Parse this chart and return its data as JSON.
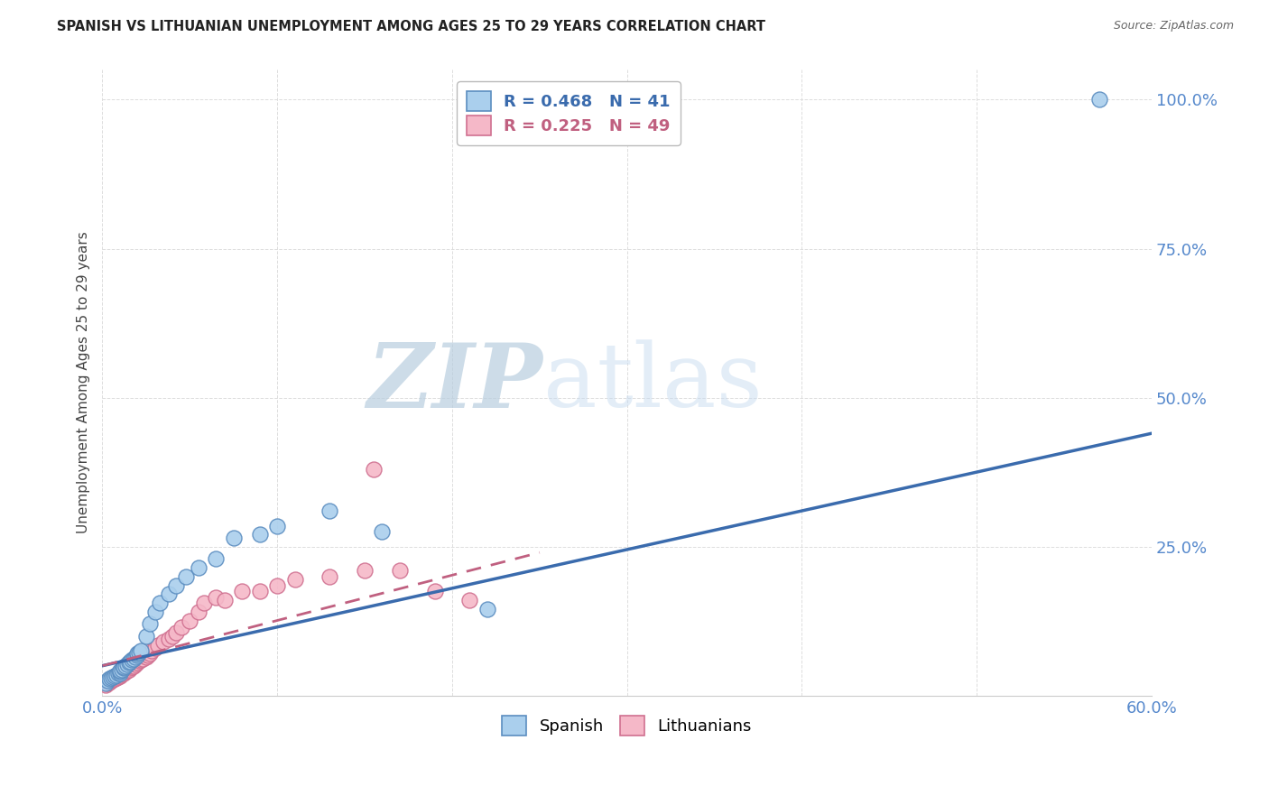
{
  "title": "SPANISH VS LITHUANIAN UNEMPLOYMENT AMONG AGES 25 TO 29 YEARS CORRELATION CHART",
  "source": "Source: ZipAtlas.com",
  "ylabel": "Unemployment Among Ages 25 to 29 years",
  "xlim": [
    0.0,
    0.6
  ],
  "ylim": [
    0.0,
    1.05
  ],
  "xticks": [
    0.0,
    0.1,
    0.2,
    0.3,
    0.4,
    0.5,
    0.6
  ],
  "xtick_labels": [
    "0.0%",
    "",
    "",
    "",
    "",
    "",
    "60.0%"
  ],
  "yticks": [
    0.0,
    0.25,
    0.5,
    0.75,
    1.0
  ],
  "ytick_labels": [
    "",
    "25.0%",
    "50.0%",
    "75.0%",
    "100.0%"
  ],
  "spanish_R": 0.468,
  "spanish_N": 41,
  "lithuanian_R": 0.225,
  "lithuanian_N": 49,
  "spanish_color": "#AACFED",
  "lithuanian_color": "#F5B8C8",
  "spanish_edge_color": "#5B8DC0",
  "lithuanian_edge_color": "#D07090",
  "spanish_line_color": "#3A6BAD",
  "lithuanian_line_color": "#C06080",
  "watermark_color": "#D8E8F5",
  "background_color": "#FFFFFF",
  "grid_color": "#DDDDDD",
  "title_color": "#222222",
  "tick_color": "#5588CC",
  "spanish_x": [
    0.002,
    0.003,
    0.004,
    0.005,
    0.006,
    0.007,
    0.008,
    0.009,
    0.01,
    0.01,
    0.01,
    0.011,
    0.012,
    0.012,
    0.013,
    0.014,
    0.015,
    0.016,
    0.017,
    0.018,
    0.019,
    0.02,
    0.02,
    0.021,
    0.022,
    0.025,
    0.027,
    0.03,
    0.033,
    0.038,
    0.042,
    0.048,
    0.055,
    0.065,
    0.075,
    0.09,
    0.1,
    0.13,
    0.16,
    0.22,
    0.57
  ],
  "spanish_y": [
    0.02,
    0.025,
    0.028,
    0.03,
    0.032,
    0.033,
    0.035,
    0.037,
    0.038,
    0.04,
    0.042,
    0.044,
    0.046,
    0.048,
    0.05,
    0.052,
    0.055,
    0.057,
    0.06,
    0.062,
    0.065,
    0.068,
    0.07,
    0.072,
    0.075,
    0.1,
    0.12,
    0.14,
    0.155,
    0.17,
    0.185,
    0.2,
    0.215,
    0.23,
    0.265,
    0.27,
    0.285,
    0.31,
    0.275,
    0.145,
    1.0
  ],
  "lithuanian_x": [
    0.002,
    0.003,
    0.004,
    0.005,
    0.006,
    0.007,
    0.008,
    0.009,
    0.01,
    0.01,
    0.011,
    0.012,
    0.013,
    0.014,
    0.015,
    0.016,
    0.017,
    0.018,
    0.019,
    0.02,
    0.021,
    0.022,
    0.023,
    0.025,
    0.026,
    0.027,
    0.028,
    0.03,
    0.032,
    0.035,
    0.038,
    0.04,
    0.042,
    0.045,
    0.05,
    0.055,
    0.058,
    0.065,
    0.07,
    0.08,
    0.09,
    0.1,
    0.11,
    0.13,
    0.15,
    0.155,
    0.17,
    0.19,
    0.21
  ],
  "lithuanian_y": [
    0.018,
    0.02,
    0.022,
    0.025,
    0.027,
    0.028,
    0.03,
    0.032,
    0.033,
    0.035,
    0.037,
    0.038,
    0.04,
    0.042,
    0.044,
    0.046,
    0.048,
    0.05,
    0.052,
    0.055,
    0.058,
    0.06,
    0.062,
    0.065,
    0.068,
    0.07,
    0.075,
    0.08,
    0.085,
    0.09,
    0.095,
    0.1,
    0.105,
    0.115,
    0.125,
    0.14,
    0.155,
    0.165,
    0.16,
    0.175,
    0.175,
    0.185,
    0.195,
    0.2,
    0.21,
    0.38,
    0.21,
    0.175,
    0.16
  ],
  "sp_line_x": [
    0.0,
    0.6
  ],
  "sp_line_y": [
    0.05,
    0.44
  ],
  "lit_line_x": [
    0.0,
    0.25
  ],
  "lit_line_y": [
    0.05,
    0.24
  ]
}
